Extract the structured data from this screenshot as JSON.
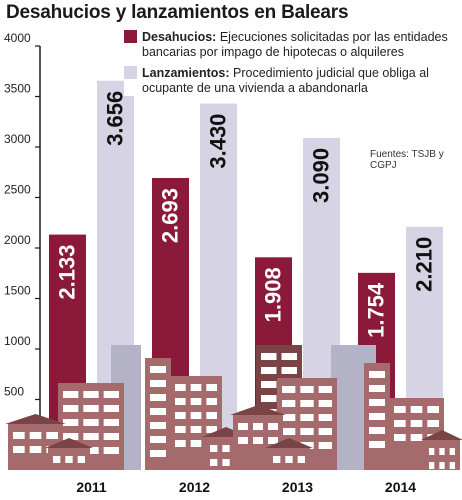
{
  "title": "Desahucios y lanzamientos en Balears",
  "source": "Fuentes: TSJB y CGPJ",
  "colors": {
    "desahucios": "#8b1a3a",
    "lanzamientos": "#d5d3e4",
    "buildings": "#a56a6c",
    "buildings_dark": "#7a4446",
    "buildings_gray": "#b4b2c6",
    "axis": "#1a1a1a"
  },
  "legend": [
    {
      "name": "Desahucios:",
      "desc1": "Ejecuciones solicitadas por las entidades",
      "desc2": "bancarias por impago de hipotecas o alquileres"
    },
    {
      "name": "Lanzamientos:",
      "desc1": "Procedimiento judicial que obliga al",
      "desc2": "ocupante de una vivienda a abandonarla"
    }
  ],
  "chart_data": {
    "type": "bar",
    "categories": [
      "2011",
      "2012",
      "2013",
      "2014"
    ],
    "series": [
      {
        "name": "Desahucios",
        "values": [
          2133,
          2693,
          1908,
          1754
        ],
        "labels": [
          "2.133",
          "2.693",
          "1.908",
          "1.754"
        ]
      },
      {
        "name": "Lanzamientos",
        "values": [
          3656,
          3430,
          3090,
          2210
        ],
        "labels": [
          "3.656",
          "3.430",
          "3.090",
          "2.210"
        ]
      }
    ],
    "yticks": [
      "500",
      "1000",
      "1500",
      "2000",
      "2500",
      "3000",
      "3500",
      "4000"
    ],
    "ylim": [
      0,
      4000
    ],
    "grid": false
  }
}
